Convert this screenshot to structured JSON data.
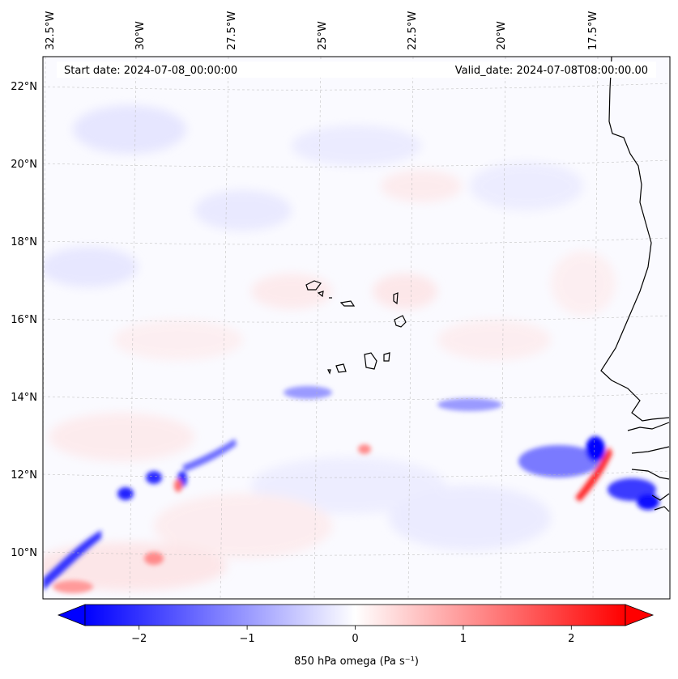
{
  "map": {
    "start_date": "Start date: 2024-07-08_00:00:00",
    "valid_date": "Valid_date: 2024-07-08T08:00:00.00",
    "lon_labels": [
      "32.5°W",
      "30°W",
      "27.5°W",
      "25°W",
      "22.5°W",
      "20°W",
      "17.5°W"
    ],
    "lat_labels": [
      "22°N",
      "20°N",
      "18°N",
      "16°N",
      "14°N",
      "12°N",
      "10°N"
    ],
    "field": "850 hPa omega",
    "colormap": "bwr",
    "colors": {
      "negative": "#0000ff",
      "zero": "#ffffff",
      "positive": "#ff0000",
      "coast": "#000000"
    }
  },
  "colorbar": {
    "label": "850 hPa omega (Pa s⁻¹)",
    "ticks": [
      "−2",
      "−1",
      "0",
      "1",
      "2"
    ],
    "tick_values": [
      -2,
      -1,
      0,
      1,
      2
    ],
    "range": [
      -2.5,
      2.5
    ],
    "extend": "both"
  }
}
